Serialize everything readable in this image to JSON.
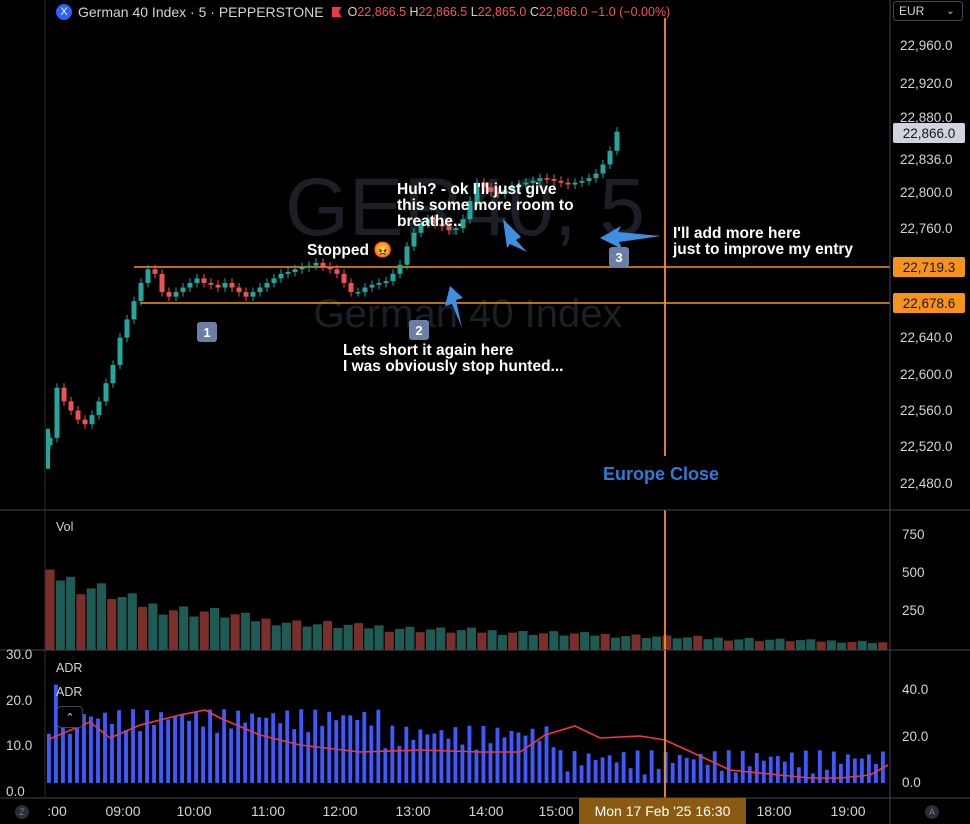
{
  "header": {
    "symbol_icon": "X",
    "symbol_title": "German 40 Index · 5 · PEPPERSTONE",
    "flag_icon": "red-flag-icon",
    "ohlc": {
      "o_key": "O",
      "o": "22,866.5",
      "h_key": "H",
      "h": "22,866.5",
      "l_key": "L",
      "l": "22,865.0",
      "c_key": "C",
      "c": "22,866.0",
      "change": "−1.0 (−0.00%)"
    }
  },
  "currency_selector": {
    "value": "EUR"
  },
  "watermark": {
    "title": "GER40, 5",
    "subtitle": "German 40 Index"
  },
  "annotations": {
    "stopped": "Stopped 😡",
    "huh_line1": "Huh? - ok I'll just give",
    "huh_line2": "this some more room to",
    "huh_line3": "breathe..",
    "add_line1": "I'll add more here",
    "add_line2": "just to improve my entry",
    "short_line1": "Lets short it again here",
    "short_line2": "I was obviously stop hunted...",
    "badge1": "1",
    "badge2": "2",
    "badge3": "3",
    "europe_close": "Europe Close"
  },
  "price_axis": {
    "labels": [
      "22,960.0",
      "22,920.0",
      "22,880.0",
      "22,836.0",
      "22,800.0",
      "22,760.0",
      "22,640.0",
      "22,600.0",
      "22,560.0",
      "22,520.0",
      "22,480.0"
    ],
    "current_price": "22,866.0",
    "line_upper": "22,719.3",
    "line_lower": "22,678.6"
  },
  "volume_pane": {
    "label": "Vol",
    "axis": [
      "750",
      "500",
      "250"
    ]
  },
  "adr_pane": {
    "label1": "ADR",
    "label2": "ADR",
    "collapse_icon": "chevron-up-icon",
    "axis": [
      "40.0",
      "20.0",
      "0.0"
    ],
    "left_axis": [
      "30.0",
      "20.0",
      "10.0",
      "0.0"
    ]
  },
  "time_axis": {
    "labels": [
      ":00",
      "09:00",
      "10:00",
      "11:00",
      "12:00",
      "13:00",
      "14:00",
      "15:00",
      "18:00",
      "19:00"
    ],
    "cursor_label": "Mon 17 Feb '25   16:30"
  },
  "corners": {
    "left": "Z",
    "right": "A"
  },
  "colors": {
    "up": "#26a69a",
    "down": "#ef5350",
    "accent_line": "#f7931a",
    "adr_bar": "#3d5afe",
    "adr_line": "#f23645",
    "annotation_arrow": "#3d8fe0"
  },
  "chart_data": {
    "type": "candlestick",
    "close_series": [
      22530,
      22585,
      22570,
      22560,
      22550,
      22545,
      22555,
      22570,
      22590,
      22610,
      22640,
      22660,
      22680,
      22700,
      22715,
      22710,
      22690,
      22685,
      22690,
      22695,
      22700,
      22705,
      22700,
      22698,
      22695,
      22700,
      22695,
      22690,
      22685,
      22690,
      22695,
      22700,
      22705,
      22710,
      22712,
      22715,
      22717,
      22719,
      22722,
      22718,
      22715,
      22710,
      22700,
      22690,
      22690,
      22695,
      22698,
      22700,
      22702,
      22710,
      22720,
      22740,
      22755,
      22765,
      22770,
      22765,
      22762,
      22758,
      22760,
      22770,
      22790,
      22810,
      22805,
      22800,
      22798,
      22802,
      22806,
      22808,
      22810,
      22812,
      22815,
      22814,
      22812,
      22810,
      22808,
      22810,
      22812,
      22815,
      22820,
      22830,
      22845,
      22866
    ]
  }
}
